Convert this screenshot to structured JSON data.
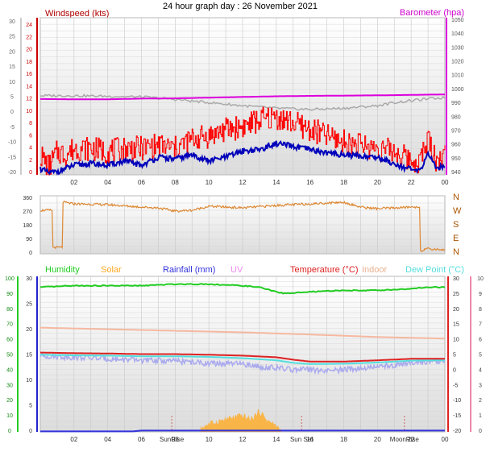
{
  "title": "24 hour graph day : 26 November 2021",
  "colors": {
    "wind_speed": "#ff0000",
    "wind_avg": "#0000bb",
    "barometer": "#dd00dd",
    "temp_black_line": "#aaaaaa",
    "wind_dir": "#dd8833",
    "humidity": "#22cc22",
    "solar": "#ffaa22",
    "rainfall": "#3333dd",
    "uv": "#ee88ee",
    "temperature": "#dd2222",
    "indoor": "#f5b8a0",
    "dewpoint": "#55dddd",
    "apparent": "#aaaaee",
    "plot_bg": "#e6e6e6"
  },
  "chart_data": [
    {
      "type": "line",
      "id": "wind-baro",
      "title": "",
      "left_axis_label": "Windspeed (kts)",
      "right_axis_label": "Barometer (hpa)",
      "outer_left_ticks": [
        "30",
        "25",
        "20",
        "15",
        "10",
        "5",
        "0",
        "-5",
        "-10",
        "-15",
        "-20"
      ],
      "left_ticks": [
        "24",
        "22",
        "20",
        "18",
        "16",
        "14",
        "12",
        "10",
        "8",
        "6",
        "4",
        "2",
        "0"
      ],
      "right_ticks": [
        "1050",
        "1040",
        "1030",
        "1020",
        "1010",
        "1000",
        "990",
        "980",
        "970",
        "960",
        "950",
        "940"
      ],
      "x_ticks": [
        "02",
        "04",
        "06",
        "08",
        "10",
        "12",
        "14",
        "16",
        "18",
        "20",
        "22",
        "00"
      ],
      "x_hours": [
        0,
        24
      ],
      "ylim_wind": [
        0,
        25
      ],
      "ylim_baro": [
        937,
        1052
      ],
      "series": [
        {
          "key": "barometer",
          "hours": [
            0,
            2,
            4,
            6,
            8,
            10,
            12,
            14,
            16,
            18,
            20,
            22,
            23,
            24
          ],
          "values": [
            992.5,
            992.3,
            992.3,
            992.8,
            993.0,
            993.5,
            994.0,
            994.5,
            994.8,
            995.0,
            995.2,
            995.5,
            995.7,
            995.8
          ]
        },
        {
          "key": "temp_gray",
          "hours": [
            0,
            2,
            4,
            6,
            8,
            10,
            12,
            14,
            16,
            18,
            20,
            21,
            22,
            23,
            24
          ],
          "values": [
            5.2,
            5.2,
            5.0,
            4.8,
            4.0,
            3.0,
            2.0,
            1.2,
            0.8,
            1.2,
            2.0,
            3.0,
            3.6,
            4.2,
            4.6
          ]
        },
        {
          "key": "wind_avg",
          "hours": [
            0,
            0.5,
            1,
            2,
            3,
            4,
            5,
            6,
            7,
            8,
            9,
            10,
            11,
            12,
            13,
            14,
            15,
            16,
            17,
            18,
            19,
            20,
            21,
            22,
            22.5,
            23,
            23.5,
            24
          ],
          "values": [
            1,
            0.3,
            0.5,
            1.5,
            1.8,
            1.5,
            2.2,
            1.5,
            2.8,
            2.5,
            3.2,
            2.2,
            2.8,
            3.8,
            4,
            5,
            4.5,
            4,
            3.5,
            3.2,
            3,
            2.8,
            1.8,
            0.8,
            0.5,
            3.5,
            1,
            1.5
          ]
        },
        {
          "key": "wind_gust",
          "hours": [
            0,
            0.5,
            1,
            1.5,
            2,
            3,
            4,
            5,
            6,
            7,
            8,
            9,
            10,
            11,
            12,
            13,
            14,
            15,
            16,
            17,
            18,
            19,
            20,
            21,
            22,
            22.5,
            23,
            23.5,
            24
          ],
          "values": [
            3,
            1,
            3.5,
            3,
            4,
            4,
            3.5,
            4,
            4,
            4.5,
            4,
            5.5,
            6,
            7,
            7.5,
            8.5,
            9,
            8,
            7,
            6,
            5,
            4.5,
            4,
            3.5,
            2,
            2,
            5.5,
            2,
            3
          ]
        }
      ]
    },
    {
      "type": "line",
      "id": "wind-direction",
      "title": "",
      "left_ticks": [
        "360",
        "270",
        "180",
        "90",
        "0"
      ],
      "right_ticks": [
        "N",
        "W",
        "S",
        "E",
        "N"
      ],
      "x_hours": [
        0,
        24
      ],
      "ylim": [
        0,
        360
      ],
      "series": [
        {
          "key": "wind_dir",
          "hours": [
            0,
            0.7,
            0.75,
            1.3,
            1.35,
            2,
            4,
            6,
            7,
            8,
            9,
            10,
            12,
            14,
            16,
            18,
            19,
            20,
            22,
            22.5,
            22.55,
            23,
            24
          ],
          "values": [
            270,
            270,
            40,
            40,
            320,
            310,
            305,
            290,
            285,
            265,
            270,
            295,
            285,
            300,
            310,
            320,
            290,
            280,
            290,
            290,
            20,
            30,
            25
          ]
        }
      ]
    },
    {
      "type": "line",
      "id": "temp-humidity",
      "title": "",
      "legend": [
        "Humidity",
        "Solar",
        "Rainfall (mm)",
        "UV",
        "Temperature (°C)",
        "Indoor",
        "Dew Point (°C)"
      ],
      "outer_left_ticks": [
        "100",
        "90",
        "80",
        "70",
        "60",
        "50",
        "40",
        "30",
        "20",
        "10",
        "0"
      ],
      "left_ticks": [
        "30",
        "25",
        "20",
        "15",
        "10",
        "5",
        "0"
      ],
      "right_ticks": [
        "30",
        "25",
        "20",
        "15",
        "10",
        "5",
        "0",
        "-5",
        "-10",
        "-15",
        "-20"
      ],
      "outer_right_ticks": [
        "10",
        "9",
        "8",
        "7",
        "6",
        "5",
        "4",
        "3",
        "2",
        "1",
        "0"
      ],
      "x_ticks": [
        "02",
        "04",
        "06",
        "08",
        "10",
        "12",
        "14",
        "16",
        "18",
        "20",
        "22",
        "00"
      ],
      "x_annotations": [
        {
          "text": "SunRise",
          "hour": 7.8
        },
        {
          "text": "Sun Set",
          "hour": 15.5
        },
        {
          "text": "MoonRise",
          "hour": 21.6
        }
      ],
      "x_hours": [
        0,
        24
      ],
      "ylim_temp": [
        -20,
        30
      ],
      "series": [
        {
          "key": "humidity",
          "hours": [
            0,
            2,
            4,
            6,
            8,
            10,
            12,
            13,
            14,
            14.5,
            16,
            18,
            20,
            22,
            23,
            24
          ],
          "values": [
            93,
            94,
            94,
            94,
            95,
            95,
            94,
            93,
            90,
            89,
            90,
            91,
            91,
            92,
            93,
            93
          ]
        },
        {
          "key": "indoor",
          "hours": [
            0,
            4,
            8,
            12,
            16,
            20,
            24
          ],
          "values": [
            13.5,
            13,
            12.5,
            12,
            11.3,
            10.5,
            10
          ]
        },
        {
          "key": "temperature",
          "hours": [
            0,
            2,
            4,
            6,
            8,
            10,
            12,
            14,
            15,
            16,
            18,
            20,
            22,
            24
          ],
          "values": [
            5.5,
            5.3,
            5.2,
            5,
            5,
            4.8,
            4.5,
            4,
            3.2,
            2.6,
            2.6,
            3,
            3.5,
            3.5
          ]
        },
        {
          "key": "dewpoint",
          "hours": [
            0,
            2,
            4,
            6,
            8,
            10,
            12,
            14,
            15,
            16,
            18,
            20,
            22,
            24
          ],
          "values": [
            4.8,
            4.6,
            4.5,
            4.3,
            4.3,
            4.1,
            3.7,
            3.0,
            2.2,
            1.8,
            1.9,
            2.3,
            2.9,
            3.0
          ]
        },
        {
          "key": "apparent",
          "hours": [
            0,
            2,
            4,
            6,
            8,
            10,
            12,
            13,
            14,
            15,
            16,
            17,
            18,
            19,
            20,
            21,
            22,
            23,
            24
          ],
          "values": [
            4.5,
            4.0,
            3.5,
            3.0,
            2.8,
            2.0,
            1.8,
            1.0,
            0.5,
            0.0,
            0,
            -0.5,
            0,
            0.5,
            1.0,
            1.5,
            2.0,
            2.5,
            2.6
          ]
        },
        {
          "key": "rainfall",
          "hours": [
            0,
            5.5,
            6,
            24
          ],
          "values": [
            0.1,
            0.1,
            0.25,
            0.25
          ]
        },
        {
          "key": "solar",
          "hours": [
            9.5,
            10,
            11,
            12,
            12.5,
            13,
            13.5,
            14,
            14.3
          ],
          "values": [
            0.8,
            1.6,
            2.5,
            3.2,
            2.5,
            4.0,
            2.2,
            1.2,
            0.3
          ]
        }
      ]
    }
  ]
}
